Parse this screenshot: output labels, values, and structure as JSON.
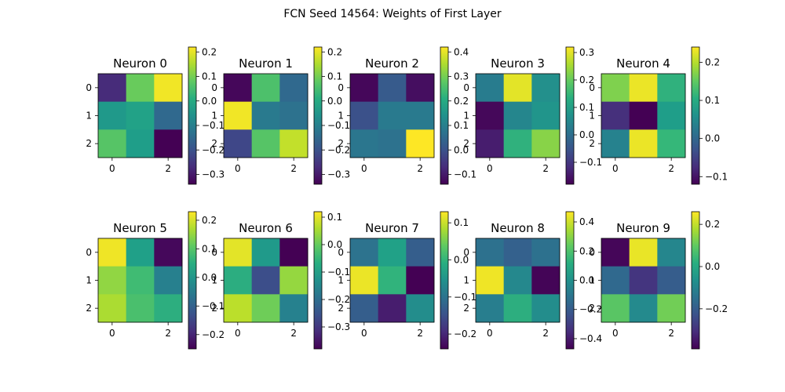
{
  "figure": {
    "title": "FCN Seed 14564: Weights of First Layer"
  },
  "chart_data": [
    {
      "type": "heatmap",
      "title": "Neuron 0",
      "xticks": [
        "0",
        "1",
        "2"
      ],
      "yticks": [
        "0",
        "1",
        "2"
      ],
      "values": [
        [
          -0.27,
          0.09,
          0.21
        ],
        [
          -0.04,
          -0.02,
          -0.15
        ],
        [
          0.07,
          -0.03,
          -0.34
        ]
      ],
      "vmin": -0.34,
      "vmax": 0.22,
      "colorbar_ticks": [
        0.2,
        0.1,
        0.0,
        -0.1,
        -0.2,
        -0.3
      ],
      "colorbar_tick_labels": [
        "0.2",
        "0.1",
        "0.0",
        "−0.1",
        "−0.2",
        "−0.3"
      ]
    },
    {
      "type": "heatmap",
      "title": "Neuron 1",
      "xticks": [
        "0",
        "1",
        "2"
      ],
      "yticks": [
        "0",
        "1",
        "2"
      ],
      "values": [
        [
          -0.33,
          0.06,
          -0.15
        ],
        [
          0.21,
          -0.11,
          -0.13
        ],
        [
          -0.22,
          0.07,
          0.17
        ]
      ],
      "vmin": -0.34,
      "vmax": 0.22,
      "colorbar_ticks": [
        0.2,
        0.1,
        0.0,
        -0.1,
        -0.2,
        -0.3
      ],
      "colorbar_tick_labels": [
        "0.2",
        "0.1",
        "0.0",
        "−0.1",
        "−0.2",
        "−0.3"
      ]
    },
    {
      "type": "heatmap",
      "title": "Neuron 2",
      "xticks": [
        "0",
        "1",
        "2"
      ],
      "yticks": [
        "0",
        "1",
        "2"
      ],
      "values": [
        [
          -0.13,
          0.02,
          -0.12
        ],
        [
          0.0,
          0.09,
          0.09
        ],
        [
          0.08,
          0.07,
          0.42
        ]
      ],
      "vmin": -0.14,
      "vmax": 0.42,
      "colorbar_ticks": [
        0.4,
        0.3,
        0.2,
        0.1,
        0.0,
        -0.1
      ],
      "colorbar_tick_labels": [
        "0.4",
        "0.3",
        "0.2",
        "0.1",
        "0.0",
        "−0.1"
      ]
    },
    {
      "type": "heatmap",
      "title": "Neuron 3",
      "xticks": [
        "0",
        "1",
        "2"
      ],
      "yticks": [
        "0",
        "1",
        "2"
      ],
      "values": [
        [
          0.03,
          0.3,
          0.07
        ],
        [
          -0.17,
          0.05,
          0.08
        ],
        [
          -0.14,
          0.14,
          0.23
        ]
      ],
      "vmin": -0.18,
      "vmax": 0.32,
      "colorbar_ticks": [
        0.3,
        0.2,
        0.1,
        0.0,
        -0.1
      ],
      "colorbar_tick_labels": [
        "0.3",
        "0.2",
        "0.1",
        "0.0",
        "−0.1"
      ]
    },
    {
      "type": "heatmap",
      "title": "Neuron 4",
      "xticks": [
        "0",
        "1",
        "2"
      ],
      "yticks": [
        "0",
        "1",
        "2"
      ],
      "values": [
        [
          0.17,
          0.23,
          0.11
        ],
        [
          -0.07,
          -0.12,
          0.08
        ],
        [
          0.04,
          0.23,
          0.12
        ]
      ],
      "vmin": -0.12,
      "vmax": 0.24,
      "colorbar_ticks": [
        0.2,
        0.1,
        0.0,
        -0.1
      ],
      "colorbar_tick_labels": [
        "0.2",
        "0.1",
        "0.0",
        "−0.1"
      ]
    },
    {
      "type": "heatmap",
      "title": "Neuron 5",
      "xticks": [
        "0",
        "1",
        "2"
      ],
      "yticks": [
        "0",
        "1",
        "2"
      ],
      "values": [
        [
          0.22,
          0.02,
          -0.24
        ],
        [
          0.15,
          0.08,
          -0.04
        ],
        [
          0.17,
          0.09,
          0.05
        ]
      ],
      "vmin": -0.25,
      "vmax": 0.23,
      "colorbar_ticks": [
        0.2,
        0.1,
        0.0,
        -0.1,
        -0.2
      ],
      "colorbar_tick_labels": [
        "0.2",
        "0.1",
        "0.0",
        "−0.1",
        "−0.2"
      ]
    },
    {
      "type": "heatmap",
      "title": "Neuron 6",
      "xticks": [
        "0",
        "1",
        "2"
      ],
      "yticks": [
        "0",
        "1",
        "2"
      ],
      "values": [
        [
          0.1,
          -0.11,
          -0.38
        ],
        [
          -0.07,
          -0.26,
          0.04
        ],
        [
          0.07,
          0.01,
          -0.16
        ]
      ],
      "vmin": -0.38,
      "vmax": 0.12,
      "colorbar_ticks": [
        0.1,
        0.0,
        -0.1,
        -0.2,
        -0.3
      ],
      "colorbar_tick_labels": [
        "0.1",
        "0.0",
        "−0.1",
        "−0.2",
        "−0.3"
      ]
    },
    {
      "type": "heatmap",
      "title": "Neuron 7",
      "xticks": [
        "0",
        "1",
        "2"
      ],
      "yticks": [
        "0",
        "1",
        "2"
      ],
      "values": [
        [
          -0.1,
          -0.03,
          -0.13
        ],
        [
          0.12,
          0.0,
          -0.24
        ],
        [
          -0.13,
          -0.21,
          -0.06
        ]
      ],
      "vmin": -0.24,
      "vmax": 0.13,
      "colorbar_ticks": [
        0.1,
        0.0,
        -0.1,
        -0.2
      ],
      "colorbar_tick_labels": [
        "0.1",
        "0.0",
        "−0.1",
        "−0.2"
      ]
    },
    {
      "type": "heatmap",
      "title": "Neuron 8",
      "xticks": [
        "0",
        "1",
        "2"
      ],
      "yticks": [
        "0",
        "1",
        "2"
      ],
      "values": [
        [
          -0.12,
          -0.18,
          -0.12
        ],
        [
          0.45,
          -0.03,
          -0.46
        ],
        [
          -0.07,
          0.12,
          -0.01
        ]
      ],
      "vmin": -0.47,
      "vmax": 0.47,
      "colorbar_ticks": [
        0.4,
        0.2,
        0.0,
        -0.2,
        -0.4
      ],
      "colorbar_tick_labels": [
        "0.4",
        "0.2",
        "0.0",
        "−0.2",
        "−0.4"
      ]
    },
    {
      "type": "heatmap",
      "title": "Neuron 9",
      "xticks": [
        "0",
        "1",
        "2"
      ],
      "yticks": [
        "0",
        "1",
        "2"
      ],
      "values": [
        [
          -0.38,
          0.24,
          -0.09
        ],
        [
          -0.17,
          -0.29,
          -0.2
        ],
        [
          0.09,
          -0.08,
          0.12
        ]
      ],
      "vmin": -0.39,
      "vmax": 0.26,
      "colorbar_ticks": [
        0.2,
        0.0,
        -0.2
      ],
      "colorbar_tick_labels": [
        "0.2",
        "0.0",
        "−0.2"
      ]
    }
  ]
}
